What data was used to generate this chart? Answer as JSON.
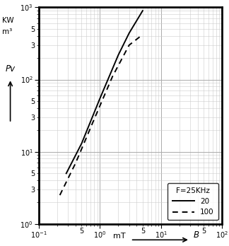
{
  "xlim": [
    0.1,
    100
  ],
  "ylim": [
    1.0,
    1000
  ],
  "legend_title": "F=25KHz",
  "line1_label": "20",
  "line2_label": "100",
  "line1_x": [
    0.28,
    0.5,
    1.0,
    2.0,
    3.0,
    5.0
  ],
  "line1_y": [
    5.0,
    13.0,
    55.0,
    220.0,
    440.0,
    900.0
  ],
  "line2_x": [
    0.22,
    0.4,
    0.8,
    1.6,
    3.0,
    5.0
  ],
  "line2_y": [
    2.5,
    7.0,
    28.0,
    110.0,
    300.0,
    420.0
  ],
  "grid_major_color": "#aaaaaa",
  "grid_minor_color": "#cccccc",
  "background_color": "#ffffff",
  "line_color": "#000000",
  "ylabel_unit": "KW",
  "ylabel_unit2": "m³",
  "ylabel_text": "Pv",
  "xlabel_text": "mT",
  "xlabel_b": "B"
}
